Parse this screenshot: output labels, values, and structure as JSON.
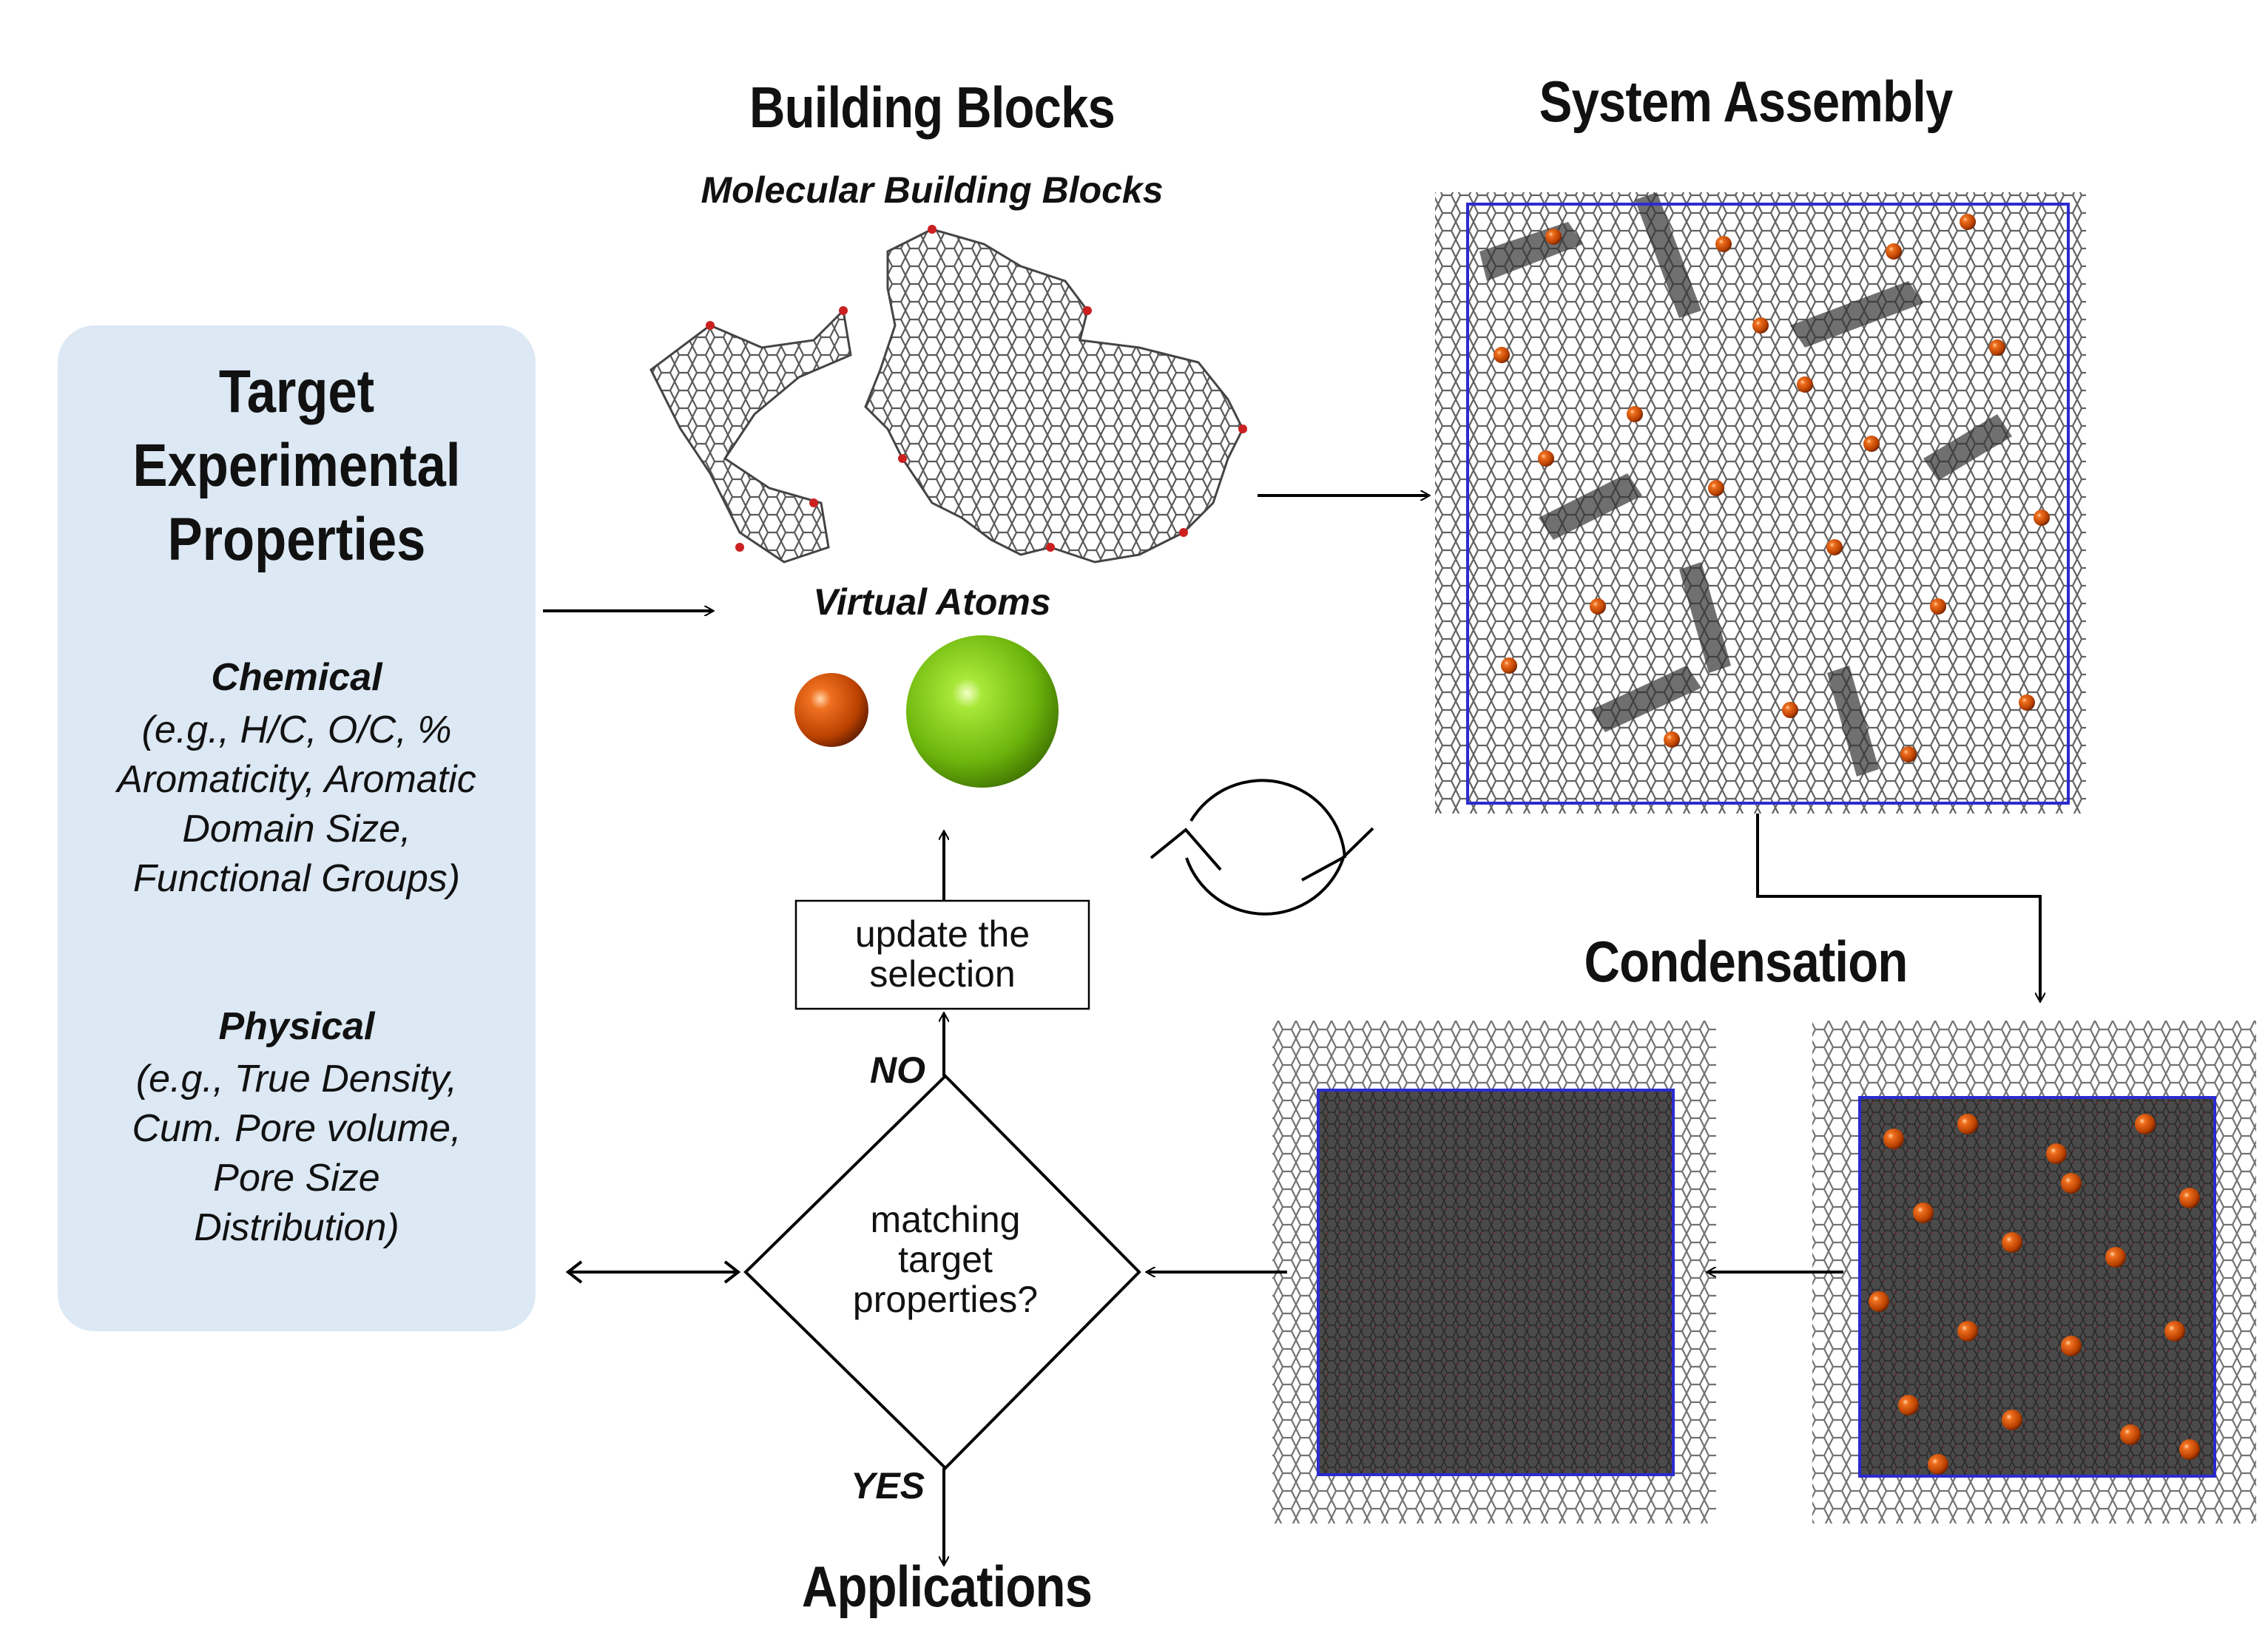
{
  "building_blocks": {
    "title": "Building Blocks",
    "subtitle_molecular": "Molecular Building Blocks",
    "subtitle_virtual": "Virtual Atoms"
  },
  "system_assembly": {
    "title": "System Assembly"
  },
  "condensation": {
    "title": "Condensation"
  },
  "applications": {
    "title": "Applications"
  },
  "target_panel": {
    "title_lines": [
      "Target",
      "Experimental",
      "Properties"
    ],
    "chemical_heading": "Chemical",
    "chemical_lines": [
      "(e.g., H/C, O/C, %",
      "Aromaticity, Aromatic",
      "Domain Size,",
      "Functional Groups)"
    ],
    "physical_heading": "Physical",
    "physical_lines": [
      "(e.g., True Density,",
      "Cum. Pore volume,",
      "Pore Size",
      "Distribution)"
    ]
  },
  "update_box": {
    "lines": [
      "update the",
      "selection"
    ]
  },
  "decision": {
    "lines": [
      "matching",
      "target",
      "properties?"
    ],
    "no_label": "NO",
    "yes_label": "YES"
  },
  "colors": {
    "panel_bg": "#dce8f4",
    "simulation_box": "#2b2bd0",
    "virtual_atom_orange": "#d9560a",
    "virtual_atom_green": "#7ec612",
    "molecule_gray": "#555555"
  }
}
